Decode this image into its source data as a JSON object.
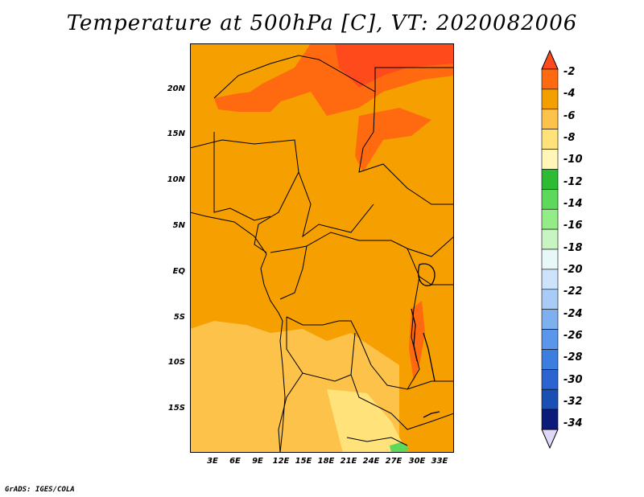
{
  "title": "Temperature at 500hPa [C], VT: 2020082006",
  "footer": "GrADS: IGES/COLA",
  "map": {
    "lat_labels": [
      "20N",
      "15N",
      "10N",
      "5N",
      "EQ",
      "5S",
      "10S",
      "15S"
    ],
    "lon_labels": [
      "3E",
      "6E",
      "9E",
      "12E",
      "15E",
      "18E",
      "21E",
      "24E",
      "27E",
      "30E",
      "33E"
    ]
  },
  "colorbar": {
    "labels": [
      "-2",
      "-4",
      "-6",
      "-8",
      "-10",
      "-12",
      "-14",
      "-16",
      "-18",
      "-20",
      "-22",
      "-24",
      "-26",
      "-28",
      "-30",
      "-32",
      "-34"
    ],
    "colors": [
      "#e0d8f8",
      "#0c1a7a",
      "#1a4fb4",
      "#2b63d0",
      "#3b7ee0",
      "#5a96ea",
      "#7eb0f0",
      "#a8ccf6",
      "#cde2fb",
      "#e8f7f8",
      "#c8f4c4",
      "#94ec88",
      "#5ed85a",
      "#2cbb32",
      "#fff6b8",
      "#ffe37a",
      "#fcc24a",
      "#f49f00",
      "#ff6a10",
      "#ff4a1c"
    ]
  }
}
